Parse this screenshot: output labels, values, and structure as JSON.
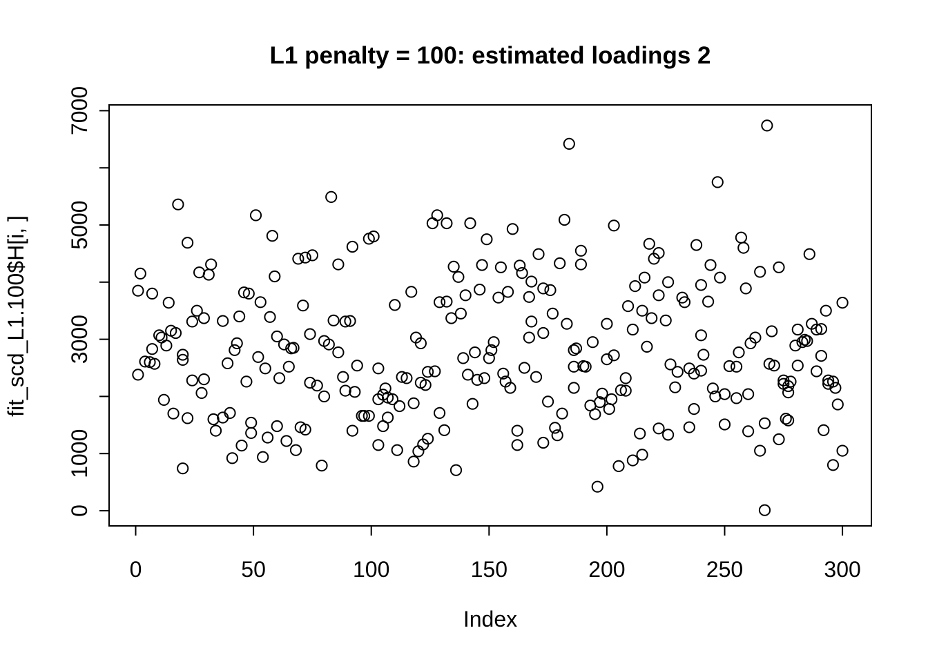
{
  "figure": {
    "background": "#ffffff",
    "foreground": "#000000"
  },
  "chart_data": {
    "type": "scatter",
    "title": "L1 penalty = 100: estimated loadings 2",
    "xlabel": "Index",
    "ylabel": "fit_scd_L1.100$H[i, ]",
    "xlim": [
      0,
      300
    ],
    "ylim": [
      0,
      7000
    ],
    "grid": false,
    "legend": "none",
    "x_ticks": [
      0,
      50,
      100,
      150,
      200,
      250,
      300
    ],
    "y_ticks": [
      0,
      1000,
      2000,
      3000,
      4000,
      5000,
      6000,
      7000
    ],
    "y_tick_labels_shown": [
      0,
      1000,
      3000,
      5000,
      7000
    ],
    "marker": {
      "shape": "open-circle",
      "radius_px": 7.6,
      "stroke": "#000000",
      "stroke_width": 2
    },
    "points": [
      [
        18,
        5360
      ],
      [
        22,
        4690
      ],
      [
        51,
        5170
      ],
      [
        58,
        4810
      ],
      [
        83,
        5490
      ],
      [
        92,
        4620
      ],
      [
        99,
        4760
      ],
      [
        101,
        4800
      ],
      [
        126,
        5030
      ],
      [
        128,
        5170
      ],
      [
        132,
        5030
      ],
      [
        142,
        5030
      ],
      [
        149,
        4750
      ],
      [
        160,
        4930
      ],
      [
        182,
        5090
      ],
      [
        184,
        6420
      ],
      [
        203,
        4990
      ],
      [
        218,
        4670
      ],
      [
        238,
        4650
      ],
      [
        247,
        5750
      ],
      [
        257,
        4780
      ],
      [
        258,
        4600
      ],
      [
        268,
        6740
      ],
      [
        286,
        4490
      ],
      [
        2,
        4150
      ],
      [
        32,
        4310
      ],
      [
        27,
        4170
      ],
      [
        31,
        4130
      ],
      [
        69,
        4410
      ],
      [
        72,
        4430
      ],
      [
        75,
        4470
      ],
      [
        86,
        4310
      ],
      [
        1,
        3850
      ],
      [
        7,
        3800
      ],
      [
        14,
        3640
      ],
      [
        59,
        4100
      ],
      [
        46,
        3820
      ],
      [
        48,
        3800
      ],
      [
        53,
        3650
      ],
      [
        26,
        3500
      ],
      [
        29,
        3370
      ],
      [
        24,
        3310
      ],
      [
        37,
        3320
      ],
      [
        44,
        3400
      ],
      [
        57,
        3390
      ],
      [
        71,
        3590
      ],
      [
        74,
        3090
      ],
      [
        80,
        2970
      ],
      [
        82,
        2910
      ],
      [
        84,
        3330
      ],
      [
        89,
        3310
      ],
      [
        91,
        3320
      ],
      [
        86,
        2770
      ],
      [
        15,
        3150
      ],
      [
        17,
        3110
      ],
      [
        10,
        3070
      ],
      [
        11,
        3030
      ],
      [
        13,
        2890
      ],
      [
        7,
        2830
      ],
      [
        4,
        2610
      ],
      [
        6,
        2600
      ],
      [
        8,
        2570
      ],
      [
        1,
        2380
      ],
      [
        20,
        2730
      ],
      [
        20,
        2640
      ],
      [
        39,
        2580
      ],
      [
        43,
        2930
      ],
      [
        42,
        2810
      ],
      [
        47,
        2260
      ],
      [
        52,
        2690
      ],
      [
        55,
        2490
      ],
      [
        60,
        3050
      ],
      [
        63,
        2910
      ],
      [
        66,
        2840
      ],
      [
        67,
        2850
      ],
      [
        65,
        2520
      ],
      [
        61,
        2320
      ],
      [
        74,
        2240
      ],
      [
        77,
        2190
      ],
      [
        88,
        2340
      ],
      [
        94,
        2540
      ],
      [
        171,
        4490
      ],
      [
        189,
        4550
      ],
      [
        180,
        4330
      ],
      [
        189,
        4310
      ],
      [
        135,
        4270
      ],
      [
        137,
        4090
      ],
      [
        147,
        4300
      ],
      [
        155,
        4260
      ],
      [
        163,
        4290
      ],
      [
        164,
        4160
      ],
      [
        168,
        4010
      ],
      [
        173,
        3890
      ],
      [
        176,
        3860
      ],
      [
        117,
        3830
      ],
      [
        110,
        3600
      ],
      [
        129,
        3650
      ],
      [
        132,
        3660
      ],
      [
        140,
        3770
      ],
      [
        146,
        3870
      ],
      [
        154,
        3730
      ],
      [
        158,
        3830
      ],
      [
        167,
        3740
      ],
      [
        134,
        3370
      ],
      [
        138,
        3450
      ],
      [
        177,
        3450
      ],
      [
        168,
        3310
      ],
      [
        167,
        3030
      ],
      [
        173,
        3110
      ],
      [
        183,
        3270
      ],
      [
        200,
        3270
      ],
      [
        119,
        3030
      ],
      [
        121,
        2930
      ],
      [
        152,
        2950
      ],
      [
        151,
        2810
      ],
      [
        150,
        2670
      ],
      [
        144,
        2770
      ],
      [
        139,
        2670
      ],
      [
        194,
        2950
      ],
      [
        186,
        2810
      ],
      [
        187,
        2840
      ],
      [
        186,
        2520
      ],
      [
        190,
        2530
      ],
      [
        191,
        2520
      ],
      [
        200,
        2650
      ],
      [
        203,
        2720
      ],
      [
        103,
        2490
      ],
      [
        113,
        2340
      ],
      [
        115,
        2320
      ],
      [
        121,
        2240
      ],
      [
        123,
        2200
      ],
      [
        124,
        2430
      ],
      [
        127,
        2440
      ],
      [
        141,
        2380
      ],
      [
        145,
        2290
      ],
      [
        148,
        2320
      ],
      [
        156,
        2400
      ],
      [
        157,
        2260
      ],
      [
        159,
        2150
      ],
      [
        165,
        2500
      ],
      [
        170,
        2340
      ],
      [
        222,
        4510
      ],
      [
        220,
        4410
      ],
      [
        244,
        4300
      ],
      [
        248,
        4080
      ],
      [
        265,
        4180
      ],
      [
        273,
        4260
      ],
      [
        216,
        4080
      ],
      [
        212,
        3930
      ],
      [
        226,
        4000
      ],
      [
        240,
        3950
      ],
      [
        259,
        3890
      ],
      [
        222,
        3770
      ],
      [
        232,
        3730
      ],
      [
        233,
        3650
      ],
      [
        243,
        3660
      ],
      [
        209,
        3580
      ],
      [
        215,
        3500
      ],
      [
        219,
        3370
      ],
      [
        225,
        3330
      ],
      [
        211,
        3170
      ],
      [
        293,
        3500
      ],
      [
        300,
        3640
      ],
      [
        287,
        3270
      ],
      [
        289,
        3170
      ],
      [
        291,
        3180
      ],
      [
        281,
        3170
      ],
      [
        284,
        2990
      ],
      [
        285,
        2970
      ],
      [
        283,
        2950
      ],
      [
        280,
        2890
      ],
      [
        270,
        3140
      ],
      [
        263,
        3030
      ],
      [
        261,
        2930
      ],
      [
        240,
        3070
      ],
      [
        217,
        2870
      ],
      [
        241,
        2730
      ],
      [
        256,
        2770
      ],
      [
        227,
        2560
      ],
      [
        230,
        2430
      ],
      [
        235,
        2490
      ],
      [
        237,
        2400
      ],
      [
        240,
        2450
      ],
      [
        252,
        2530
      ],
      [
        255,
        2520
      ],
      [
        269,
        2570
      ],
      [
        271,
        2540
      ],
      [
        281,
        2540
      ],
      [
        289,
        2440
      ],
      [
        291,
        2710
      ],
      [
        275,
        2280
      ],
      [
        278,
        2260
      ],
      [
        294,
        2280
      ],
      [
        296,
        2260
      ],
      [
        208,
        2320
      ],
      [
        24,
        2280
      ],
      [
        29,
        2300
      ],
      [
        28,
        2060
      ],
      [
        12,
        1940
      ],
      [
        16,
        1700
      ],
      [
        22,
        1620
      ],
      [
        33,
        1600
      ],
      [
        37,
        1630
      ],
      [
        40,
        1710
      ],
      [
        34,
        1400
      ],
      [
        49,
        1540
      ],
      [
        49,
        1360
      ],
      [
        45,
        1140
      ],
      [
        41,
        920
      ],
      [
        20,
        740
      ],
      [
        54,
        940
      ],
      [
        56,
        1280
      ],
      [
        60,
        1480
      ],
      [
        64,
        1220
      ],
      [
        68,
        1060
      ],
      [
        70,
        1460
      ],
      [
        72,
        1420
      ],
      [
        80,
        2000
      ],
      [
        79,
        790
      ],
      [
        89,
        2100
      ],
      [
        93,
        2080
      ],
      [
        96,
        1660
      ],
      [
        97,
        1660
      ],
      [
        99,
        1660
      ],
      [
        92,
        1400
      ],
      [
        106,
        2140
      ],
      [
        105,
        2030
      ],
      [
        103,
        1950
      ],
      [
        107,
        1980
      ],
      [
        109,
        1950
      ],
      [
        112,
        1830
      ],
      [
        118,
        1880
      ],
      [
        107,
        1630
      ],
      [
        105,
        1480
      ],
      [
        129,
        1710
      ],
      [
        118,
        860
      ],
      [
        103,
        1150
      ],
      [
        111,
        1060
      ],
      [
        120,
        1040
      ],
      [
        122,
        1160
      ],
      [
        124,
        1260
      ],
      [
        131,
        1410
      ],
      [
        136,
        710
      ],
      [
        143,
        1870
      ],
      [
        162,
        1400
      ],
      [
        162,
        1150
      ],
      [
        173,
        1190
      ],
      [
        175,
        1910
      ],
      [
        178,
        1450
      ],
      [
        179,
        1320
      ],
      [
        181,
        1700
      ],
      [
        186,
        2150
      ],
      [
        193,
        1840
      ],
      [
        197,
        1900
      ],
      [
        202,
        1950
      ],
      [
        201,
        1780
      ],
      [
        195,
        1690
      ],
      [
        198,
        2050
      ],
      [
        196,
        420
      ],
      [
        206,
        2110
      ],
      [
        208,
        2100
      ],
      [
        229,
        2160
      ],
      [
        245,
        2140
      ],
      [
        246,
        2000
      ],
      [
        250,
        2040
      ],
      [
        255,
        1970
      ],
      [
        260,
        2040
      ],
      [
        275,
        2220
      ],
      [
        277,
        2180
      ],
      [
        277,
        2070
      ],
      [
        294,
        2220
      ],
      [
        297,
        2150
      ],
      [
        298,
        1860
      ],
      [
        237,
        1780
      ],
      [
        235,
        1460
      ],
      [
        214,
        1350
      ],
      [
        222,
        1440
      ],
      [
        226,
        1330
      ],
      [
        250,
        1510
      ],
      [
        260,
        1390
      ],
      [
        267,
        1530
      ],
      [
        276,
        1610
      ],
      [
        277,
        1580
      ],
      [
        273,
        1250
      ],
      [
        265,
        1050
      ],
      [
        292,
        1410
      ],
      [
        300,
        1050
      ],
      [
        296,
        800
      ],
      [
        215,
        980
      ],
      [
        211,
        880
      ],
      [
        205,
        780
      ],
      [
        267,
        10
      ]
    ]
  }
}
